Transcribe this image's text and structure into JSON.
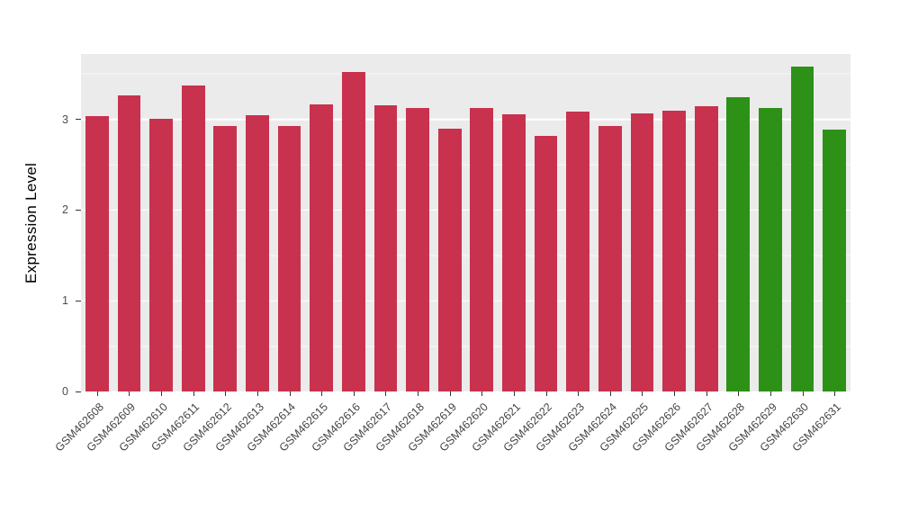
{
  "chart_data": {
    "type": "bar",
    "title": "",
    "xlabel": "",
    "ylabel": "Expression Level",
    "ylim": [
      0,
      3.72
    ],
    "yticks": [
      0,
      1,
      2,
      3
    ],
    "minor_gridlines": [
      0.5,
      1.5,
      2.5,
      3.5
    ],
    "grid": true,
    "legend": false,
    "panel_background": "#EBEBEB",
    "grid_color": "#FFFFFF",
    "figure_background": "#FFFFFF",
    "group_colors": {
      "red_group": "#C8324E",
      "green_group": "#2D9117"
    },
    "categories": [
      "GSM462608",
      "GSM462609",
      "GSM462610",
      "GSM462611",
      "GSM462612",
      "GSM462613",
      "GSM462614",
      "GSM462615",
      "GSM462616",
      "GSM462617",
      "GSM462618",
      "GSM462619",
      "GSM462620",
      "GSM462621",
      "GSM462622",
      "GSM462623",
      "GSM462624",
      "GSM462625",
      "GSM462626",
      "GSM462627",
      "GSM462628",
      "GSM462629",
      "GSM462630",
      "GSM462631"
    ],
    "values": [
      3.04,
      3.26,
      3.01,
      3.37,
      2.93,
      3.05,
      2.93,
      3.16,
      3.52,
      3.15,
      3.12,
      2.9,
      3.12,
      3.06,
      2.82,
      3.09,
      2.93,
      3.07,
      3.1,
      3.14,
      3.24,
      3.12,
      3.58,
      2.89
    ],
    "colors": [
      "#C8324E",
      "#C8324E",
      "#C8324E",
      "#C8324E",
      "#C8324E",
      "#C8324E",
      "#C8324E",
      "#C8324E",
      "#C8324E",
      "#C8324E",
      "#C8324E",
      "#C8324E",
      "#C8324E",
      "#C8324E",
      "#C8324E",
      "#C8324E",
      "#C8324E",
      "#C8324E",
      "#C8324E",
      "#C8324E",
      "#2D9117",
      "#2D9117",
      "#2D9117",
      "#2D9117"
    ]
  }
}
